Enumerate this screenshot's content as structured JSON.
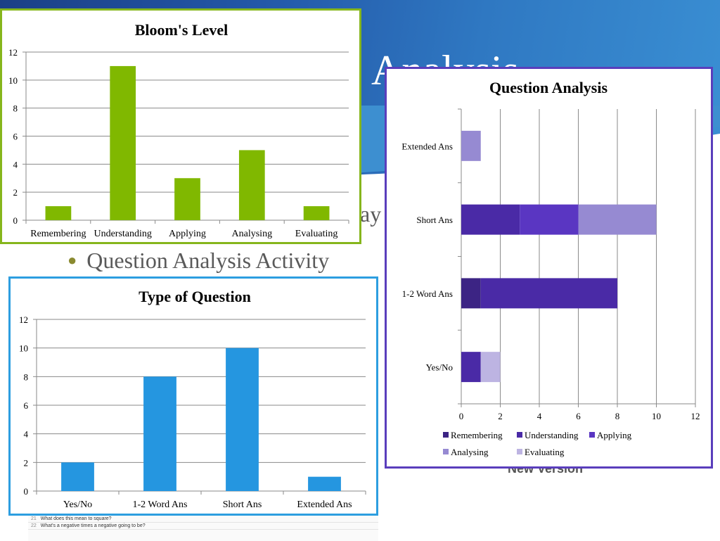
{
  "slide": {
    "title_partial": "Analysis",
    "bullet": "Question Analysis Activity",
    "partial_text": "ay",
    "new_version": "New Version",
    "sheet_rows": [
      {
        "num": "21",
        "text": "What does this mean to square?"
      },
      {
        "num": "22",
        "text": "What's a negative times a negative going to be?"
      }
    ]
  },
  "chart_data": [
    {
      "type": "bar",
      "title": "Bloom's Level",
      "categories": [
        "Remembering",
        "Understanding",
        "Applying",
        "Analysing",
        "Evaluating"
      ],
      "values": [
        1,
        11,
        3,
        5,
        1
      ],
      "ylim": [
        0,
        12
      ],
      "yticks": [
        0,
        2,
        4,
        6,
        8,
        10,
        12
      ],
      "xlabel": "",
      "ylabel": "",
      "grid": true,
      "color": "#80b800"
    },
    {
      "type": "bar",
      "orientation": "horizontal",
      "stacked": true,
      "title": "Question Analysis",
      "categories": [
        "Yes/No",
        "1-2 Word Ans",
        "Short Ans",
        "Extended Ans"
      ],
      "series": [
        {
          "name": "Remembering",
          "values": [
            0,
            1,
            0,
            0
          ],
          "color": "#3c2484"
        },
        {
          "name": "Understanding",
          "values": [
            1,
            7,
            3,
            0
          ],
          "color": "#4a2aa6"
        },
        {
          "name": "Applying",
          "values": [
            0,
            0,
            3,
            0
          ],
          "color": "#5a36c2"
        },
        {
          "name": "Analysing",
          "values": [
            0,
            0,
            4,
            1
          ],
          "color": "#968ad2"
        },
        {
          "name": "Evaluating",
          "values": [
            1,
            0,
            0,
            0
          ],
          "color": "#bdb4e2"
        }
      ],
      "xlim": [
        0,
        12
      ],
      "xticks": [
        0,
        2,
        4,
        6,
        8,
        10,
        12
      ],
      "grid": true,
      "legend": "bottom"
    },
    {
      "type": "bar",
      "title": "Type of Question",
      "categories": [
        "Yes/No",
        "1-2 Word Ans",
        "Short Ans",
        "Extended Ans"
      ],
      "values": [
        2,
        8,
        10,
        1
      ],
      "ylim": [
        0,
        12
      ],
      "yticks": [
        0,
        2,
        4,
        6,
        8,
        10,
        12
      ],
      "xlabel": "",
      "ylabel": "",
      "grid": true,
      "color": "#2596e0"
    }
  ]
}
